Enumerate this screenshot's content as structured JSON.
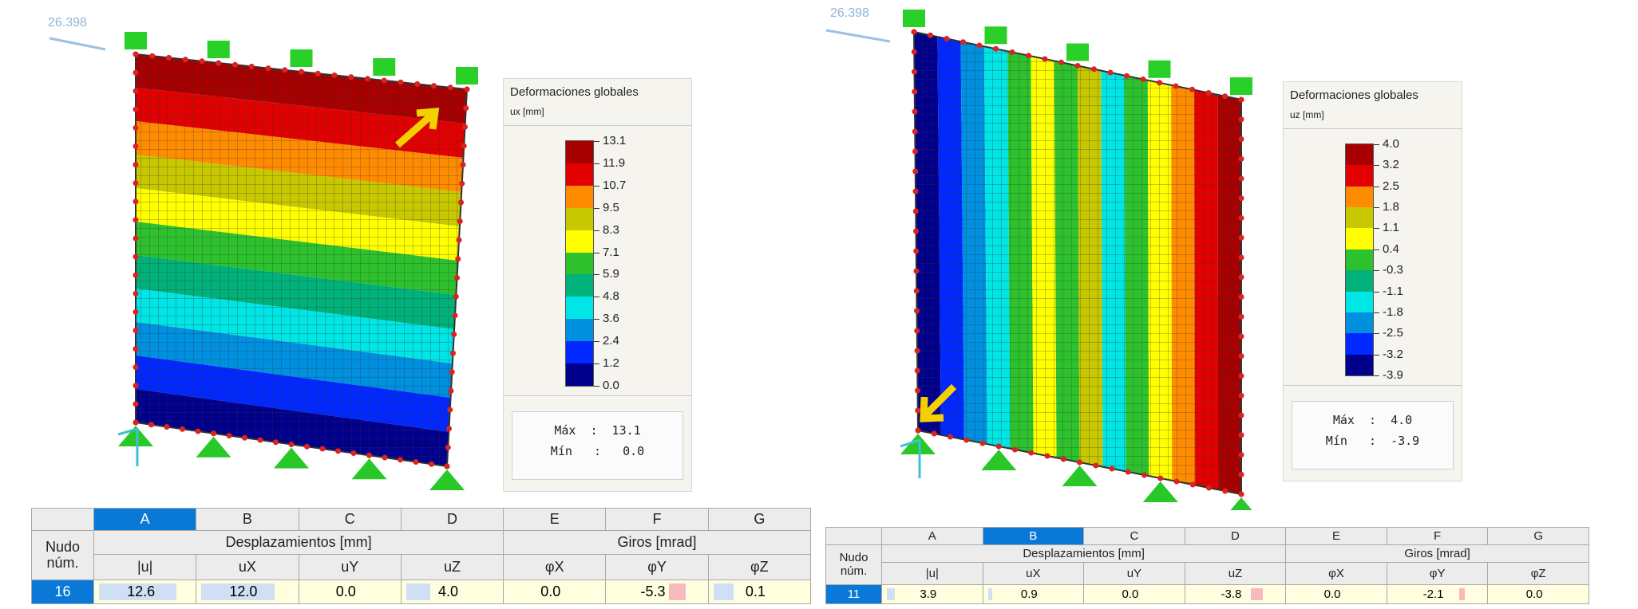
{
  "panels": [
    {
      "scale_label": "26.398",
      "legend": {
        "title": "Deformaciones globales",
        "unit": "ux [mm]",
        "ticks": [
          "13.1",
          "11.9",
          "10.7",
          "9.5",
          "8.3",
          "7.1",
          "5.9",
          "4.8",
          "3.6",
          "2.4",
          "1.2",
          "0.0"
        ],
        "colors": [
          "#a80000",
          "#e20000",
          "#ff8c00",
          "#c8c800",
          "#ffff00",
          "#2dc22d",
          "#00b27a",
          "#00e5e5",
          "#0090e0",
          "#0028ff",
          "#00008c"
        ],
        "max": "Máx  :  13.1",
        "min": "Mín   :   0.0"
      },
      "table": {
        "columns": [
          "A",
          "B",
          "C",
          "D",
          "E",
          "F",
          "G"
        ],
        "selected": 0,
        "node_header": [
          "Nudo",
          "núm."
        ],
        "groups": [
          {
            "label": "Desplazamientos [mm]",
            "span": 4
          },
          {
            "label": "Giros [mrad]",
            "span": 3
          }
        ],
        "subheaders": [
          "|u|",
          "uX",
          "uY",
          "uZ",
          "φX",
          "φY",
          "φZ"
        ],
        "rows": [
          [
            "16",
            "12.6",
            "12.0",
            "0.0",
            "4.0",
            "0.0",
            "-5.3",
            "0.1"
          ]
        ]
      }
    },
    {
      "scale_label": "26.398",
      "legend": {
        "title": "Deformaciones globales",
        "unit": "uz [mm]",
        "ticks": [
          "4.0",
          "3.2",
          "2.5",
          "1.8",
          "1.1",
          "0.4",
          "-0.3",
          "-1.1",
          "-1.8",
          "-2.5",
          "-3.2",
          "-3.9"
        ],
        "colors": [
          "#a80000",
          "#e20000",
          "#ff8c00",
          "#c8c800",
          "#ffff00",
          "#2dc22d",
          "#00b27a",
          "#00e5e5",
          "#0090e0",
          "#0028ff",
          "#00008c"
        ],
        "max": "Máx  :  4.0",
        "min": "Mín   :  -3.9"
      },
      "table": {
        "columns": [
          "A",
          "B",
          "C",
          "D",
          "E",
          "F",
          "G"
        ],
        "selected": 1,
        "node_header": [
          "Nudo",
          "núm."
        ],
        "groups": [
          {
            "label": "Desplazamientos [mm]",
            "span": 4
          },
          {
            "label": "Giros [mrad]",
            "span": 3
          }
        ],
        "subheaders": [
          "|u|",
          "uX",
          "uY",
          "uZ",
          "φX",
          "φY",
          "φZ"
        ],
        "rows": [
          [
            "11",
            "3.9",
            "0.9",
            "0.0",
            "-3.8",
            "0.0",
            "-2.1",
            "0.0"
          ]
        ]
      }
    }
  ]
}
